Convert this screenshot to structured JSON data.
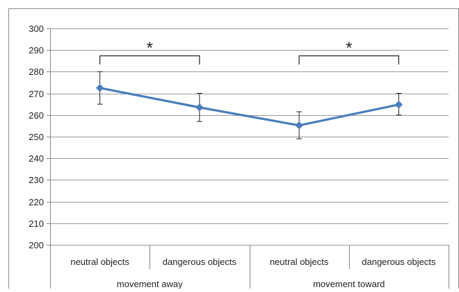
{
  "chart_data": {
    "type": "line",
    "title": "",
    "xlabel": "",
    "ylabel": "",
    "ylim": [
      200,
      300
    ],
    "yticks": [
      200,
      210,
      220,
      230,
      240,
      250,
      260,
      270,
      280,
      290,
      300
    ],
    "grid": true,
    "legend": "none",
    "categories": [
      "neutral objects",
      "dangerous objects",
      "neutral objects",
      "dangerous objects"
    ],
    "groups": [
      {
        "label": "movement away",
        "categories": [
          0,
          1
        ]
      },
      {
        "label": "movement toward",
        "categories": [
          2,
          3
        ]
      }
    ],
    "series": [
      {
        "values": [
          272.5,
          263.5,
          255.2,
          264.8
        ],
        "error_low": [
          265,
          257,
          249,
          260
        ],
        "error_high": [
          280,
          270,
          261.5,
          270
        ],
        "color": "#4a7ebb"
      }
    ],
    "annotations": [
      {
        "text": "*",
        "between": [
          0,
          1
        ]
      },
      {
        "text": "*",
        "between": [
          2,
          3
        ]
      }
    ]
  }
}
